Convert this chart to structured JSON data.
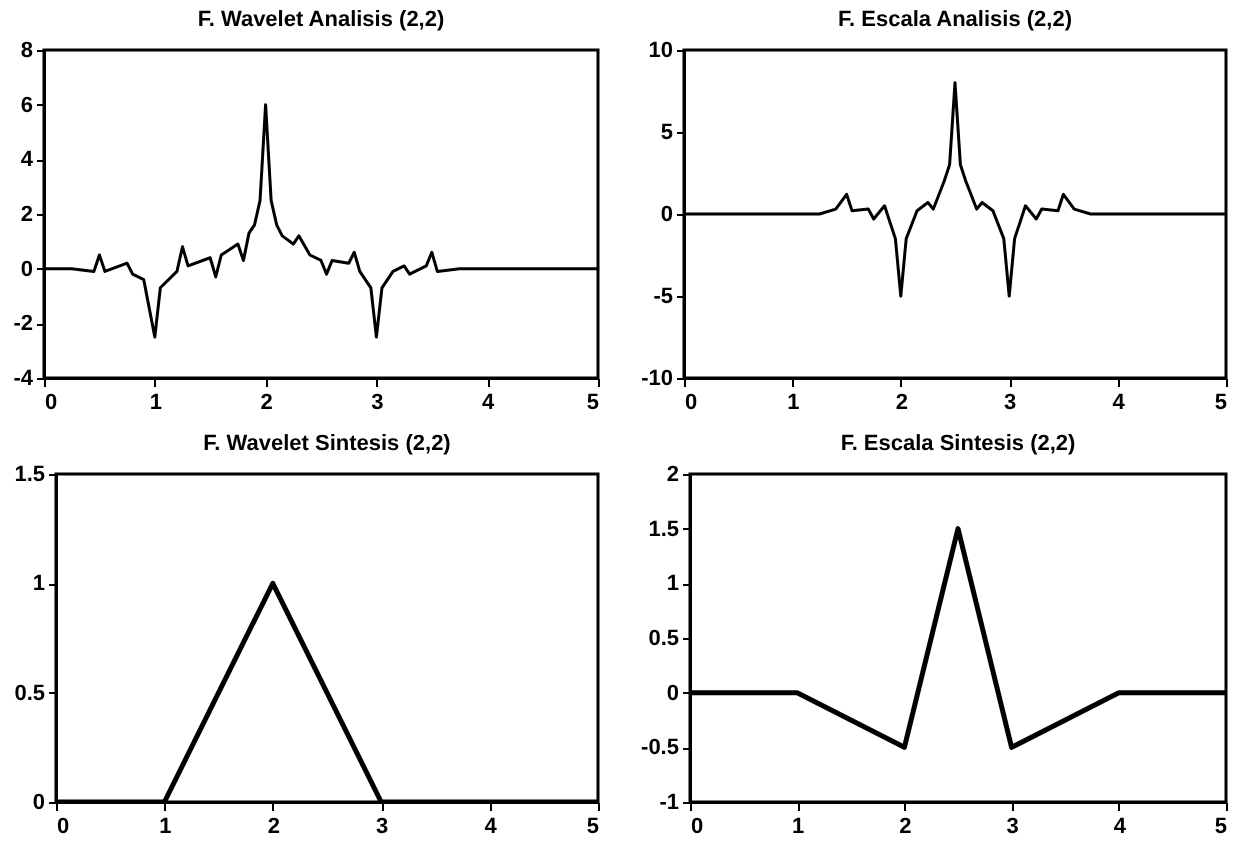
{
  "chart_data": [
    {
      "type": "line",
      "title": "F. Wavelet Analisis (2,2)",
      "color": "#000000",
      "xlim": [
        0,
        5
      ],
      "ylim": [
        -4,
        8
      ],
      "xticks": [
        0,
        1,
        2,
        3,
        4,
        5
      ],
      "yticks": [
        -4,
        -2,
        0,
        2,
        4,
        6,
        8
      ],
      "x": [
        0,
        0.25,
        0.45,
        0.5,
        0.55,
        0.75,
        0.8,
        0.9,
        1,
        1.05,
        1.2,
        1.25,
        1.3,
        1.5,
        1.55,
        1.6,
        1.75,
        1.8,
        1.85,
        1.9,
        1.95,
        2,
        2.05,
        2.1,
        2.15,
        2.25,
        2.3,
        2.4,
        2.5,
        2.55,
        2.6,
        2.75,
        2.8,
        2.85,
        2.95,
        3,
        3.05,
        3.15,
        3.25,
        3.3,
        3.45,
        3.5,
        3.55,
        3.75,
        4,
        5
      ],
      "values": [
        0,
        0,
        -0.1,
        0.5,
        -0.1,
        0.2,
        -0.2,
        -0.4,
        -2.5,
        -0.7,
        -0.1,
        0.8,
        0.1,
        0.4,
        -0.3,
        0.5,
        0.9,
        0.3,
        1.3,
        1.6,
        2.5,
        6,
        2.5,
        1.6,
        1.2,
        0.9,
        1.2,
        0.5,
        0.3,
        -0.2,
        0.3,
        0.2,
        0.6,
        -0.1,
        -0.7,
        -2.5,
        -0.7,
        -0.1,
        0.1,
        -0.2,
        0.1,
        0.6,
        -0.1,
        0,
        0,
        0
      ]
    },
    {
      "type": "line",
      "title": "F. Escala Analisis (2,2)",
      "color": "#000000",
      "xlim": [
        0,
        5
      ],
      "ylim": [
        -10,
        10
      ],
      "xticks": [
        0,
        1,
        2,
        3,
        4,
        5
      ],
      "yticks": [
        -10,
        -5,
        0,
        5,
        10
      ],
      "x": [
        0,
        1.25,
        1.4,
        1.5,
        1.55,
        1.7,
        1.75,
        1.85,
        1.9,
        1.95,
        2,
        2.05,
        2.15,
        2.25,
        2.3,
        2.4,
        2.45,
        2.5,
        2.55,
        2.6,
        2.7,
        2.75,
        2.85,
        2.95,
        3,
        3.05,
        3.1,
        3.15,
        3.25,
        3.3,
        3.45,
        3.5,
        3.6,
        3.75,
        5
      ],
      "values": [
        0,
        0,
        0.3,
        1.2,
        0.2,
        0.3,
        -0.3,
        0.5,
        -0.5,
        -1.5,
        -5,
        -1.5,
        0.2,
        0.7,
        0.3,
        2,
        3,
        8,
        3,
        2,
        0.3,
        0.7,
        0.2,
        -1.5,
        -5,
        -1.5,
        -0.5,
        0.5,
        -0.3,
        0.3,
        0.2,
        1.2,
        0.3,
        0,
        0
      ]
    },
    {
      "type": "line",
      "title": "F. Wavelet Sintesis (2,2)",
      "color": "#000000",
      "xlim": [
        0,
        5
      ],
      "ylim": [
        0,
        1.5
      ],
      "xticks": [
        0,
        1,
        2,
        3,
        4,
        5
      ],
      "yticks": [
        0,
        0.5,
        1,
        1.5
      ],
      "x": [
        0,
        1,
        2,
        3,
        5
      ],
      "values": [
        0,
        0,
        1,
        0,
        0
      ]
    },
    {
      "type": "line",
      "title": "F. Escala Sintesis (2,2)",
      "color": "#000000",
      "xlim": [
        0,
        5
      ],
      "ylim": [
        -1,
        2
      ],
      "xticks": [
        0,
        1,
        2,
        3,
        4,
        5
      ],
      "yticks": [
        -1,
        -0.5,
        0,
        0.5,
        1,
        1.5,
        2
      ],
      "x": [
        0,
        1,
        2,
        2.5,
        3,
        4,
        5
      ],
      "values": [
        0,
        0,
        -0.5,
        1.5,
        -0.5,
        0,
        0
      ]
    }
  ]
}
